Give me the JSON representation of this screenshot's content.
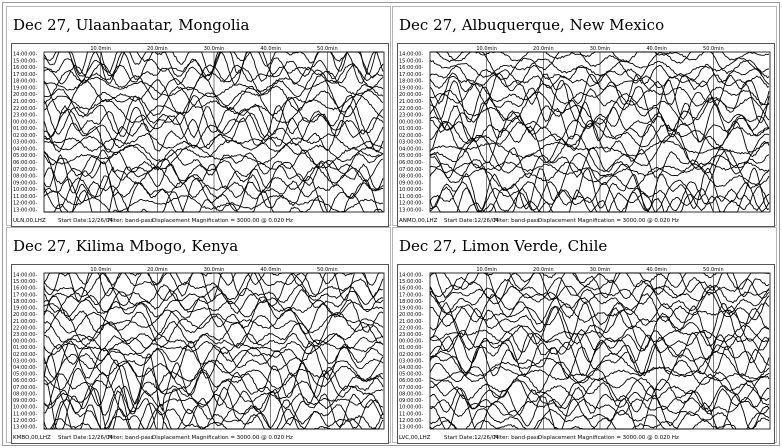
{
  "panels": [
    {
      "title": "Dec 27, Ulaanbaatar, Mongolia",
      "station": "ULN,00,LHZ",
      "start": "Start Date:12/26/04",
      "filter": "Filter: band-pass",
      "magnification": "Displacement Magnification = 3000.00 @ 0.020 Hz",
      "minute_marks": [
        "10.0min",
        "20.0min",
        "30.0min",
        "40.0min",
        "50.0min"
      ],
      "hour_labels": [
        "14:00:00-",
        "15:00:00-",
        "16:00:00-",
        "17:00:00-",
        "18:00:00-",
        "19:00:00-",
        "20:00:00-",
        "21:00:00-",
        "22:00:00-",
        "23:00:00-",
        "00:00:00-",
        "01:00:00-",
        "02:00:00-",
        "03:00:00-",
        "04:00:00-",
        "05:00:00-",
        "06:00:00-",
        "07:00:00-",
        "08:00:00-",
        "09:00:00-",
        "10:00:00-",
        "11:00:00-",
        "12:00:00-",
        "13:00:00-"
      ]
    },
    {
      "title": "Dec 27, Albuquerque, New Mexico",
      "station": "ANMO,00,LHZ",
      "start": "Start Date:12/26/04",
      "filter": "Filter: band-pass",
      "magnification": "Displacement Magnification = 3000.00 @ 0.020 Hz",
      "minute_marks": [
        "10.0min",
        "20.0min",
        "30.0min",
        "40.0min",
        "50.0min"
      ],
      "hour_labels": [
        "14:00:00-",
        "15:00:00-",
        "16:00:00-",
        "17:00:00-",
        "18:00:00-",
        "19:00:00-",
        "20:00:00-",
        "21:00:00-",
        "22:00:00-",
        "23:00:00-",
        "00:00:00-",
        "01:00:00-",
        "02:00:00-",
        "03:00:00-",
        "04:00:00-",
        "05:00:00-",
        "06:00:00-",
        "07:00:00-",
        "08:00:00-",
        "09:00:00-",
        "10:00:00-",
        "11:00:00-",
        "12:00:00-",
        "13:00:00-"
      ]
    },
    {
      "title": "Dec 27, Kilima Mbogo, Kenya",
      "station": "KMBO,00,LHZ",
      "start": "Start Date:12/26/04",
      "filter": "Filter: band-pass",
      "magnification": "Displacement Magnification = 3000.00 @ 0.020 Hz",
      "minute_marks": [
        "10.0min",
        "20.0min",
        "30.0min",
        "40.0min",
        "50.0min"
      ],
      "hour_labels": [
        "14:00:00-",
        "15:00:00-",
        "16:00:00-",
        "17:00:00-",
        "18:00:00-",
        "19:00:00-",
        "20:00:00-",
        "21:00:00-",
        "22:00:00-",
        "23:00:00-",
        "00:00:00-",
        "01:00:00-",
        "02:00:00-",
        "03:00:00-",
        "04:00:00-",
        "05:00:00-",
        "06:00:00-",
        "07:00:00-",
        "08:00:00-",
        "09:00:00-",
        "10:00:00-",
        "11:00:00-",
        "12:00:00-",
        "13:00:00-"
      ]
    },
    {
      "title": "Dec 27, Limon Verde, Chile",
      "station": "LVC,00,LHZ",
      "start": "Start Date:12/26/04",
      "filter": "Filter: band-pass",
      "magnification": "Displacement Magnification = 3000.00 @ 0.020 Hz",
      "minute_marks": [
        "10.0min",
        "20.0min",
        "30.0min",
        "40.0min",
        "50.0min"
      ],
      "hour_labels": [
        "14:00:00-",
        "15:00:00-",
        "16:00:00-",
        "17:00:00-",
        "18:00:00-",
        "19:00:00-",
        "20:00:00-",
        "21:00:00-",
        "22:00:00-",
        "23:00:00-",
        "00:00:00-",
        "01:00:00-",
        "02:00:00-",
        "03:00:00-",
        "04:00:00-",
        "05:00:00-",
        "06:00:00-",
        "07:00:00-",
        "08:00:00-",
        "09:00:00-",
        "10:00:00-",
        "11:00:00-",
        "12:00:00-",
        "13:00:00-"
      ]
    }
  ],
  "colors": {
    "trace": "#000000",
    "background": "#ffffff",
    "border": "#b5b5b5"
  }
}
